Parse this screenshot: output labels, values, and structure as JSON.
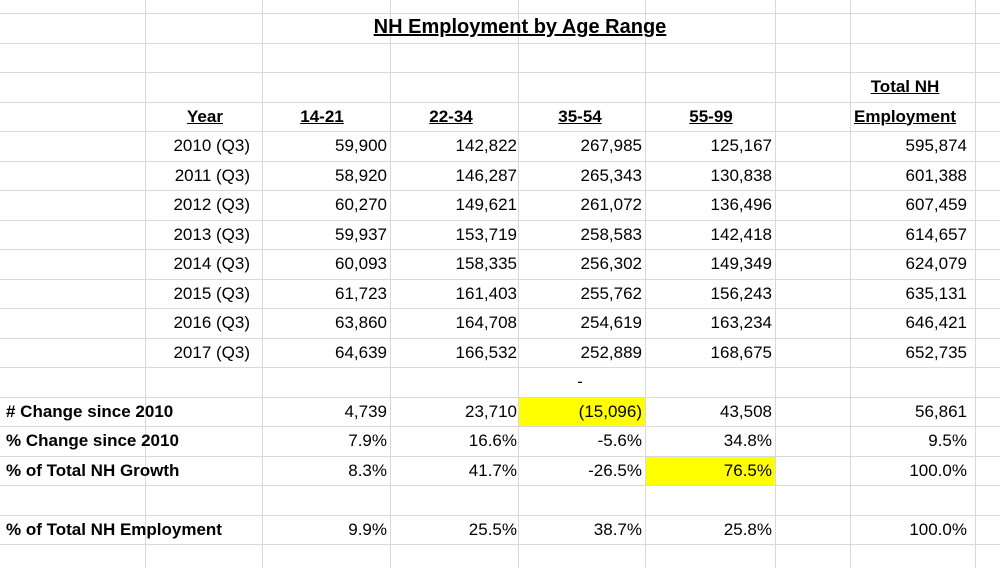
{
  "title": "NH Employment by Age Range",
  "header": {
    "year": "Year",
    "columns": [
      "14-21",
      "22-34",
      "35-54",
      "55-99"
    ],
    "total_line1": "Total NH",
    "total_line2": "Employment"
  },
  "rows": [
    [
      "2010 (Q3)",
      "59,900",
      "142,822",
      "267,985",
      "125,167",
      "595,874"
    ],
    [
      "2011 (Q3)",
      "58,920",
      "146,287",
      "265,343",
      "130,838",
      "601,388"
    ],
    [
      "2012 (Q3)",
      "60,270",
      "149,621",
      "261,072",
      "136,496",
      "607,459"
    ],
    [
      "2013 (Q3)",
      "59,937",
      "153,719",
      "258,583",
      "142,418",
      "614,657"
    ],
    [
      "2014 (Q3)",
      "60,093",
      "158,335",
      "256,302",
      "149,349",
      "624,079"
    ],
    [
      "2015 (Q3)",
      "61,723",
      "161,403",
      "255,762",
      "156,243",
      "635,131"
    ],
    [
      "2016 (Q3)",
      "63,860",
      "164,708",
      "254,619",
      "163,234",
      "646,421"
    ],
    [
      "2017 (Q3)",
      "64,639",
      "166,532",
      "252,889",
      "168,675",
      "652,735"
    ]
  ],
  "dash_note": "-",
  "summary": [
    {
      "label": "# Change since 2010",
      "values": [
        "4,739",
        "23,710",
        "(15,096)",
        "43,508",
        "56,861"
      ]
    },
    {
      "label": "% Change since 2010",
      "values": [
        "7.9%",
        "16.6%",
        "-5.6%",
        "34.8%",
        "9.5%"
      ]
    },
    {
      "label": "% of Total NH Growth",
      "values": [
        "8.3%",
        "41.7%",
        "-26.5%",
        "76.5%",
        "100.0%"
      ]
    },
    {
      "label": "% of Total NH Employment",
      "values": [
        "9.9%",
        "25.5%",
        "38.7%",
        "25.8%",
        "100.0%"
      ]
    }
  ]
}
